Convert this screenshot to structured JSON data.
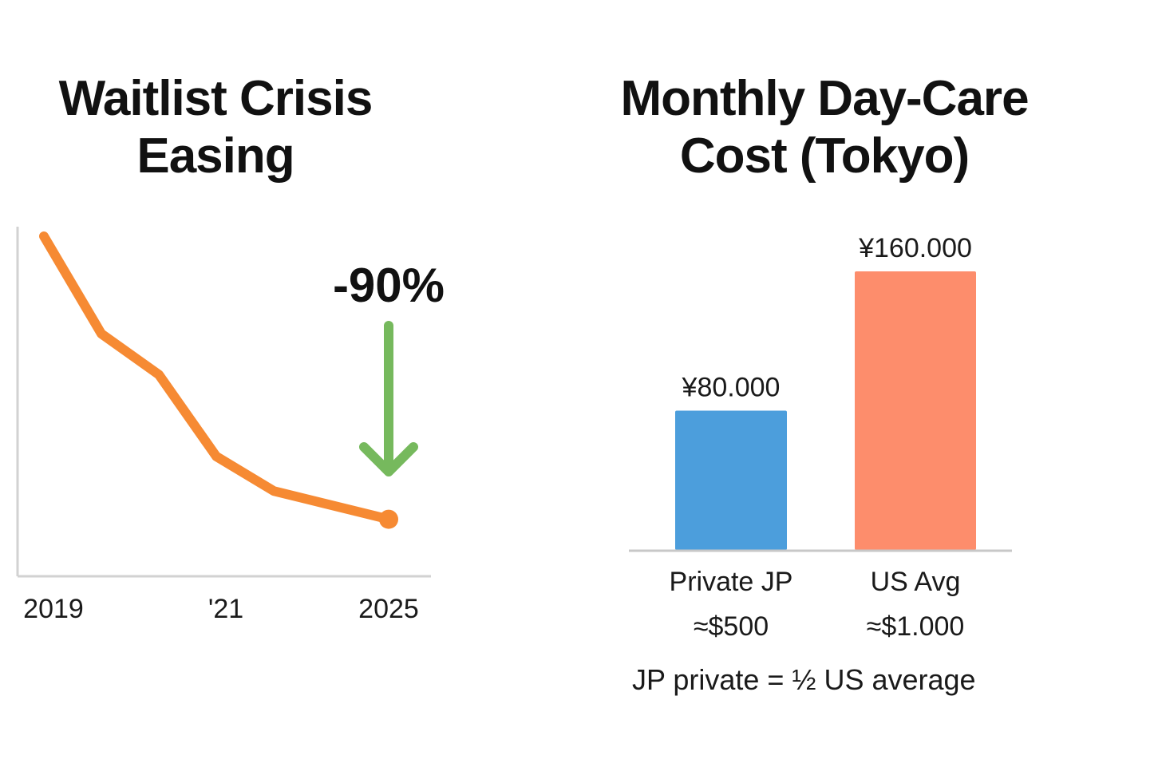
{
  "chart_data": [
    {
      "type": "line",
      "title": "Waitlist Crisis Easing",
      "x_tick_labels": [
        "2019",
        "'21",
        "2025"
      ],
      "x": [
        2019,
        2020,
        2021,
        2022,
        2023,
        2025
      ],
      "values": [
        100,
        69,
        56,
        30,
        19,
        10
      ],
      "ylim": [
        0,
        100
      ],
      "annotation": {
        "text": "-90%",
        "arrow": "down"
      },
      "colors": {
        "line": "#f68a33",
        "arrow": "#76b95d",
        "axis": "#d2d2d2"
      }
    },
    {
      "type": "bar",
      "title": "Monthly Day-Care Cost (Tokyo)",
      "categories": [
        "Private JP",
        "US Avg"
      ],
      "sublabels": [
        "≈$500",
        "≈$1.000"
      ],
      "value_labels": [
        "¥80.000",
        "¥160.000"
      ],
      "values": [
        80000,
        160000
      ],
      "ylim": [
        0,
        160000
      ],
      "footnote": "JP private = ½ US average",
      "colors": {
        "bars": [
          "#4c9edc",
          "#fd8d6c"
        ],
        "axis": "#c8c8c8"
      }
    }
  ]
}
